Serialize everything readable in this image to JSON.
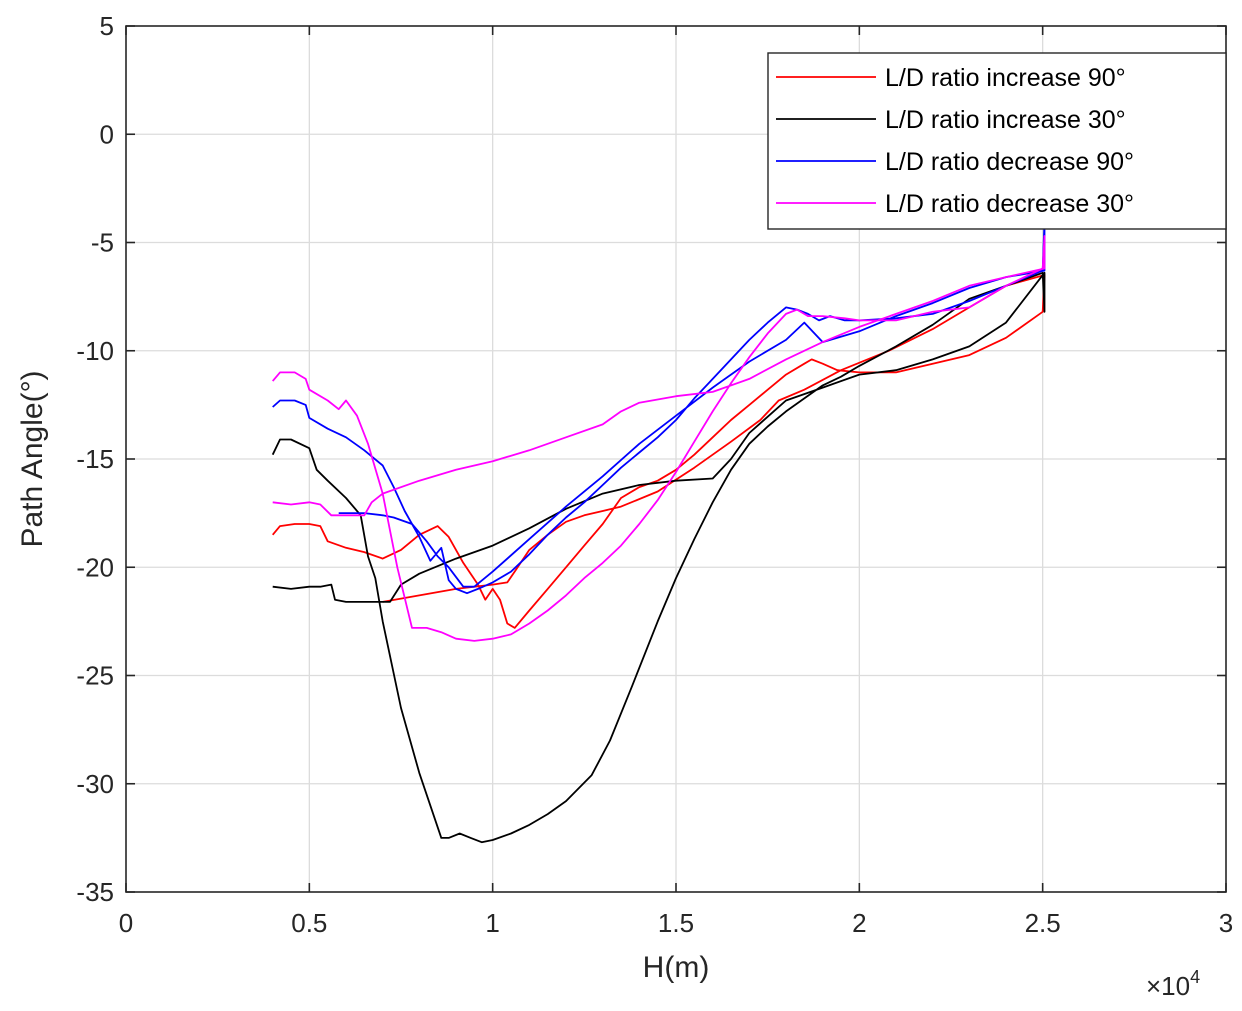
{
  "chart_data": {
    "type": "line",
    "title": "",
    "xlabel": "H(m)",
    "ylabel": "Path Angle(°)",
    "x_exponent_label": "×10",
    "x_exponent_power": "4",
    "xlim": [
      0,
      30000
    ],
    "ylim": [
      -35,
      5
    ],
    "grid": true,
    "legend_position": "top-right",
    "x_ticks": [
      {
        "value": 0,
        "label": "0"
      },
      {
        "value": 5000,
        "label": "0.5"
      },
      {
        "value": 10000,
        "label": "1"
      },
      {
        "value": 15000,
        "label": "1.5"
      },
      {
        "value": 20000,
        "label": "2"
      },
      {
        "value": 25000,
        "label": "2.5"
      },
      {
        "value": 30000,
        "label": "3"
      }
    ],
    "y_ticks": [
      {
        "value": 5,
        "label": "5"
      },
      {
        "value": 0,
        "label": "0"
      },
      {
        "value": -5,
        "label": "-5"
      },
      {
        "value": -10,
        "label": "-10"
      },
      {
        "value": -15,
        "label": "-15"
      },
      {
        "value": -20,
        "label": "-20"
      },
      {
        "value": -25,
        "label": "-25"
      },
      {
        "value": -30,
        "label": "-30"
      },
      {
        "value": -35,
        "label": "-35"
      }
    ],
    "series": [
      {
        "name": "L/D ratio increase 90°",
        "color": "#ff0000",
        "points": [
          [
            4000,
            -18.5
          ],
          [
            4200,
            -18.1
          ],
          [
            4600,
            -18.0
          ],
          [
            5000,
            -18.0
          ],
          [
            5300,
            -18.1
          ],
          [
            5500,
            -18.8
          ],
          [
            6000,
            -19.1
          ],
          [
            6500,
            -19.3
          ],
          [
            7000,
            -19.6
          ],
          [
            7500,
            -19.2
          ],
          [
            8000,
            -18.5
          ],
          [
            8500,
            -18.1
          ],
          [
            8800,
            -18.6
          ],
          [
            9200,
            -19.8
          ],
          [
            9600,
            -20.8
          ],
          [
            9800,
            -21.5
          ],
          [
            10000,
            -21.0
          ],
          [
            10200,
            -21.5
          ],
          [
            10400,
            -22.6
          ],
          [
            10600,
            -22.8
          ],
          [
            11000,
            -22.0
          ],
          [
            11500,
            -21.0
          ],
          [
            12000,
            -20.0
          ],
          [
            12500,
            -19.0
          ],
          [
            13000,
            -18.0
          ],
          [
            13500,
            -16.8
          ],
          [
            14000,
            -16.3
          ],
          [
            14500,
            -16.0
          ],
          [
            15000,
            -15.5
          ],
          [
            15500,
            -14.8
          ],
          [
            16000,
            -14.0
          ],
          [
            16500,
            -13.2
          ],
          [
            17000,
            -12.5
          ],
          [
            17500,
            -11.8
          ],
          [
            18000,
            -11.1
          ],
          [
            18500,
            -10.6
          ],
          [
            18700,
            -10.4
          ],
          [
            19000,
            -10.6
          ],
          [
            19400,
            -10.9
          ],
          [
            20000,
            -11.0
          ],
          [
            21000,
            -11.0
          ],
          [
            22000,
            -10.6
          ],
          [
            23000,
            -10.2
          ],
          [
            24000,
            -9.4
          ],
          [
            25000,
            -8.2
          ],
          [
            25050,
            -6.5
          ]
        ],
        "points_return": [
          [
            25050,
            -6.5
          ],
          [
            24000,
            -7.0
          ],
          [
            23000,
            -8.0
          ],
          [
            22000,
            -9.0
          ],
          [
            20800,
            -10.0
          ],
          [
            19500,
            -10.9
          ],
          [
            18500,
            -11.8
          ],
          [
            17800,
            -12.3
          ],
          [
            17300,
            -13.2
          ],
          [
            16500,
            -14.2
          ],
          [
            15500,
            -15.4
          ],
          [
            14500,
            -16.5
          ],
          [
            13500,
            -17.2
          ],
          [
            13000,
            -17.4
          ],
          [
            12500,
            -17.6
          ],
          [
            12000,
            -17.9
          ],
          [
            11500,
            -18.5
          ],
          [
            11000,
            -19.2
          ],
          [
            10600,
            -20.2
          ],
          [
            10400,
            -20.7
          ],
          [
            10000,
            -20.8
          ],
          [
            9000,
            -21.0
          ],
          [
            8000,
            -21.3
          ],
          [
            7000,
            -21.6
          ]
        ]
      },
      {
        "name": "L/D ratio increase 30°",
        "color": "#000000",
        "points": [
          [
            4000,
            -14.8
          ],
          [
            4200,
            -14.1
          ],
          [
            4500,
            -14.1
          ],
          [
            5000,
            -14.5
          ],
          [
            5200,
            -15.5
          ],
          [
            5500,
            -16.0
          ],
          [
            6000,
            -16.8
          ],
          [
            6400,
            -17.6
          ],
          [
            6600,
            -19.5
          ],
          [
            6800,
            -20.5
          ],
          [
            7000,
            -22.5
          ],
          [
            7500,
            -26.5
          ],
          [
            8000,
            -29.5
          ],
          [
            8300,
            -31.0
          ],
          [
            8600,
            -32.5
          ],
          [
            8800,
            -32.5
          ],
          [
            9100,
            -32.3
          ],
          [
            9400,
            -32.5
          ],
          [
            9700,
            -32.7
          ],
          [
            10000,
            -32.6
          ],
          [
            10500,
            -32.3
          ],
          [
            11000,
            -31.9
          ],
          [
            11500,
            -31.4
          ],
          [
            12000,
            -30.8
          ],
          [
            12700,
            -29.6
          ],
          [
            13200,
            -28.0
          ],
          [
            13800,
            -25.5
          ],
          [
            14500,
            -22.5
          ],
          [
            15000,
            -20.5
          ],
          [
            15500,
            -18.7
          ],
          [
            16000,
            -17.0
          ],
          [
            16500,
            -15.5
          ],
          [
            17000,
            -14.3
          ],
          [
            17500,
            -13.5
          ],
          [
            18000,
            -12.8
          ],
          [
            18500,
            -12.2
          ],
          [
            19000,
            -11.6
          ],
          [
            19500,
            -11.2
          ],
          [
            20000,
            -10.7
          ],
          [
            21000,
            -9.8
          ],
          [
            22000,
            -8.8
          ],
          [
            23000,
            -7.6
          ],
          [
            24000,
            -7.0
          ],
          [
            25000,
            -6.4
          ],
          [
            25050,
            -8.2
          ]
        ],
        "points_return": [
          [
            25050,
            -6.4
          ],
          [
            24000,
            -8.7
          ],
          [
            23000,
            -9.8
          ],
          [
            22000,
            -10.4
          ],
          [
            21000,
            -10.9
          ],
          [
            20000,
            -11.1
          ],
          [
            19000,
            -11.7
          ],
          [
            18000,
            -12.3
          ],
          [
            17000,
            -13.8
          ],
          [
            16500,
            -15.0
          ],
          [
            16000,
            -15.9
          ],
          [
            15000,
            -16.0
          ],
          [
            14000,
            -16.2
          ],
          [
            13000,
            -16.6
          ],
          [
            12000,
            -17.3
          ],
          [
            11000,
            -18.2
          ],
          [
            10000,
            -19.0
          ],
          [
            9000,
            -19.6
          ],
          [
            8000,
            -20.3
          ],
          [
            7500,
            -20.8
          ],
          [
            7200,
            -21.6
          ],
          [
            6500,
            -21.6
          ],
          [
            6000,
            -21.6
          ],
          [
            5700,
            -21.5
          ],
          [
            5600,
            -20.8
          ],
          [
            5300,
            -20.9
          ],
          [
            5000,
            -20.9
          ],
          [
            4500,
            -21.0
          ],
          [
            4000,
            -20.9
          ]
        ]
      },
      {
        "name": "L/D ratio decrease 90°",
        "color": "#0000ff",
        "points": [
          [
            4000,
            -12.6
          ],
          [
            4200,
            -12.3
          ],
          [
            4600,
            -12.3
          ],
          [
            4900,
            -12.5
          ],
          [
            5000,
            -13.1
          ],
          [
            5500,
            -13.6
          ],
          [
            6000,
            -14.0
          ],
          [
            6500,
            -14.6
          ],
          [
            7000,
            -15.3
          ],
          [
            7300,
            -16.3
          ],
          [
            7600,
            -17.4
          ],
          [
            8000,
            -18.6
          ],
          [
            8300,
            -19.7
          ],
          [
            8600,
            -19.1
          ],
          [
            8800,
            -20.6
          ],
          [
            9000,
            -21.0
          ],
          [
            9300,
            -21.2
          ],
          [
            9600,
            -21.0
          ],
          [
            10000,
            -20.7
          ],
          [
            10500,
            -20.2
          ],
          [
            11000,
            -19.4
          ],
          [
            11500,
            -18.5
          ],
          [
            12000,
            -17.7
          ],
          [
            12500,
            -17.0
          ],
          [
            13000,
            -16.2
          ],
          [
            13500,
            -15.4
          ],
          [
            14000,
            -14.7
          ],
          [
            14500,
            -14.0
          ],
          [
            15000,
            -13.2
          ],
          [
            15500,
            -12.2
          ],
          [
            16000,
            -11.3
          ],
          [
            16500,
            -10.4
          ],
          [
            17000,
            -9.5
          ],
          [
            17500,
            -8.7
          ],
          [
            18000,
            -8.0
          ],
          [
            18300,
            -8.1
          ],
          [
            18600,
            -8.3
          ],
          [
            18900,
            -8.6
          ],
          [
            19200,
            -8.4
          ],
          [
            19600,
            -8.6
          ],
          [
            20000,
            -8.6
          ],
          [
            21000,
            -8.5
          ],
          [
            22000,
            -8.3
          ],
          [
            23000,
            -7.7
          ],
          [
            24000,
            -7.0
          ],
          [
            25000,
            -6.3
          ],
          [
            25050,
            -4.0
          ]
        ],
        "points_return": [
          [
            25050,
            -6.3
          ],
          [
            24000,
            -6.6
          ],
          [
            23000,
            -7.1
          ],
          [
            22000,
            -7.8
          ],
          [
            21000,
            -8.4
          ],
          [
            20000,
            -9.1
          ],
          [
            19000,
            -9.6
          ],
          [
            18500,
            -8.7
          ],
          [
            18000,
            -9.5
          ],
          [
            17000,
            -10.5
          ],
          [
            16000,
            -11.7
          ],
          [
            15000,
            -13.0
          ],
          [
            14000,
            -14.3
          ],
          [
            13000,
            -15.8
          ],
          [
            12000,
            -17.2
          ],
          [
            11000,
            -18.7
          ],
          [
            10000,
            -20.2
          ],
          [
            9500,
            -20.9
          ],
          [
            9200,
            -20.9
          ],
          [
            8800,
            -20.0
          ],
          [
            8500,
            -19.5
          ],
          [
            8200,
            -18.8
          ],
          [
            7800,
            -18.0
          ],
          [
            7300,
            -17.7
          ],
          [
            7000,
            -17.6
          ],
          [
            6500,
            -17.5
          ],
          [
            6000,
            -17.5
          ],
          [
            5800,
            -17.5
          ]
        ]
      },
      {
        "name": "L/D ratio decrease 30°",
        "color": "#ff00ff",
        "points": [
          [
            4000,
            -11.4
          ],
          [
            4200,
            -11.0
          ],
          [
            4600,
            -11.0
          ],
          [
            4900,
            -11.3
          ],
          [
            5000,
            -11.8
          ],
          [
            5500,
            -12.3
          ],
          [
            5800,
            -12.7
          ],
          [
            6000,
            -12.3
          ],
          [
            6300,
            -13.0
          ],
          [
            6600,
            -14.3
          ],
          [
            7000,
            -16.6
          ],
          [
            7400,
            -20.0
          ],
          [
            7800,
            -22.8
          ],
          [
            8200,
            -22.8
          ],
          [
            8600,
            -23.0
          ],
          [
            9000,
            -23.3
          ],
          [
            9500,
            -23.4
          ],
          [
            10000,
            -23.3
          ],
          [
            10500,
            -23.1
          ],
          [
            11000,
            -22.6
          ],
          [
            11500,
            -22.0
          ],
          [
            12000,
            -21.3
          ],
          [
            12500,
            -20.5
          ],
          [
            13000,
            -19.8
          ],
          [
            13500,
            -19.0
          ],
          [
            14000,
            -18.0
          ],
          [
            14500,
            -16.9
          ],
          [
            15000,
            -15.6
          ],
          [
            15500,
            -14.2
          ],
          [
            16000,
            -12.8
          ],
          [
            16500,
            -11.5
          ],
          [
            17000,
            -10.3
          ],
          [
            17500,
            -9.2
          ],
          [
            18000,
            -8.3
          ],
          [
            18300,
            -8.1
          ],
          [
            18600,
            -8.4
          ],
          [
            19000,
            -8.4
          ],
          [
            19600,
            -8.5
          ],
          [
            20000,
            -8.6
          ],
          [
            21000,
            -8.6
          ],
          [
            22000,
            -8.2
          ],
          [
            23000,
            -8.0
          ],
          [
            24000,
            -7.0
          ],
          [
            25000,
            -6.2
          ],
          [
            25050,
            -4.7
          ]
        ],
        "points_return": [
          [
            25050,
            -6.2
          ],
          [
            24000,
            -6.6
          ],
          [
            23000,
            -7.0
          ],
          [
            22000,
            -7.7
          ],
          [
            21000,
            -8.3
          ],
          [
            20000,
            -8.9
          ],
          [
            19000,
            -9.6
          ],
          [
            18000,
            -10.4
          ],
          [
            17000,
            -11.3
          ],
          [
            16000,
            -11.9
          ],
          [
            15000,
            -12.1
          ],
          [
            14000,
            -12.4
          ],
          [
            13500,
            -12.8
          ],
          [
            13000,
            -13.4
          ],
          [
            12000,
            -14.0
          ],
          [
            11000,
            -14.6
          ],
          [
            10000,
            -15.1
          ],
          [
            9000,
            -15.5
          ],
          [
            8000,
            -16.0
          ],
          [
            7000,
            -16.6
          ],
          [
            6700,
            -17.0
          ],
          [
            6500,
            -17.6
          ],
          [
            6000,
            -17.6
          ],
          [
            5600,
            -17.6
          ],
          [
            5300,
            -17.1
          ],
          [
            5000,
            -17.0
          ],
          [
            4500,
            -17.1
          ],
          [
            4000,
            -17.0
          ]
        ]
      }
    ]
  }
}
